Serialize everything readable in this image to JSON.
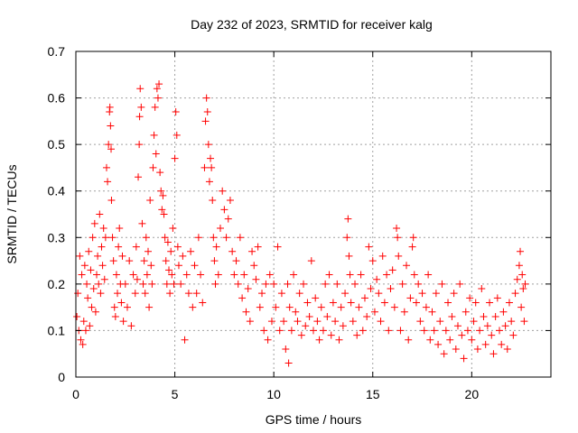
{
  "chart_data": {
    "type": "scatter",
    "title": "Day 232 of 2023, SRMTID for receiver kalg",
    "xlabel": "GPS time / hours",
    "ylabel": "SRMTID / TECUs",
    "xlim": [
      0,
      24
    ],
    "ylim": [
      0,
      0.7
    ],
    "xticks": [
      0,
      5,
      10,
      15,
      20
    ],
    "xtick_labels": [
      "0",
      "5",
      "10",
      "15",
      "20"
    ],
    "yticks": [
      0,
      0.1,
      0.2,
      0.3,
      0.4,
      0.5,
      0.6,
      0.7
    ],
    "ytick_labels": [
      "0",
      "0.1",
      "0.2",
      "0.3",
      "0.4",
      "0.5",
      "0.6",
      "0.7"
    ],
    "grid": true,
    "marker": "+",
    "marker_color": "#ff0000",
    "series": [
      {
        "name": "SRMTID",
        "points": [
          [
            0.05,
            0.13
          ],
          [
            0.1,
            0.18
          ],
          [
            0.15,
            0.1
          ],
          [
            0.2,
            0.26
          ],
          [
            0.25,
            0.08
          ],
          [
            0.3,
            0.22
          ],
          [
            0.35,
            0.07
          ],
          [
            0.4,
            0.12
          ],
          [
            0.45,
            0.24
          ],
          [
            0.5,
            0.1
          ],
          [
            0.55,
            0.2
          ],
          [
            0.6,
            0.17
          ],
          [
            0.65,
            0.27
          ],
          [
            0.7,
            0.11
          ],
          [
            0.75,
            0.23
          ],
          [
            0.8,
            0.15
          ],
          [
            0.85,
            0.3
          ],
          [
            0.9,
            0.19
          ],
          [
            0.95,
            0.33
          ],
          [
            1.0,
            0.14
          ],
          [
            1.05,
            0.22
          ],
          [
            1.1,
            0.26
          ],
          [
            1.15,
            0.2
          ],
          [
            1.2,
            0.35
          ],
          [
            1.25,
            0.18
          ],
          [
            1.3,
            0.28
          ],
          [
            1.35,
            0.24
          ],
          [
            1.4,
            0.32
          ],
          [
            1.45,
            0.21
          ],
          [
            1.5,
            0.3
          ],
          [
            1.55,
            0.45
          ],
          [
            1.6,
            0.42
          ],
          [
            1.65,
            0.5
          ],
          [
            1.7,
            0.57
          ],
          [
            1.72,
            0.58
          ],
          [
            1.75,
            0.54
          ],
          [
            1.78,
            0.49
          ],
          [
            1.8,
            0.38
          ],
          [
            1.85,
            0.3
          ],
          [
            1.9,
            0.25
          ],
          [
            1.95,
            0.15
          ],
          [
            2.0,
            0.13
          ],
          [
            2.05,
            0.22
          ],
          [
            2.1,
            0.18
          ],
          [
            2.15,
            0.28
          ],
          [
            2.2,
            0.32
          ],
          [
            2.25,
            0.2
          ],
          [
            2.3,
            0.16
          ],
          [
            2.35,
            0.26
          ],
          [
            2.4,
            0.12
          ],
          [
            2.5,
            0.2
          ],
          [
            2.6,
            0.15
          ],
          [
            2.7,
            0.25
          ],
          [
            2.8,
            0.11
          ],
          [
            2.9,
            0.22
          ],
          [
            3.0,
            0.18
          ],
          [
            3.05,
            0.28
          ],
          [
            3.1,
            0.21
          ],
          [
            3.15,
            0.43
          ],
          [
            3.2,
            0.5
          ],
          [
            3.22,
            0.56
          ],
          [
            3.25,
            0.62
          ],
          [
            3.3,
            0.58
          ],
          [
            3.35,
            0.33
          ],
          [
            3.4,
            0.2
          ],
          [
            3.45,
            0.25
          ],
          [
            3.5,
            0.18
          ],
          [
            3.55,
            0.3
          ],
          [
            3.6,
            0.22
          ],
          [
            3.65,
            0.27
          ],
          [
            3.7,
            0.15
          ],
          [
            3.75,
            0.38
          ],
          [
            3.8,
            0.24
          ],
          [
            3.85,
            0.2
          ],
          [
            3.9,
            0.45
          ],
          [
            3.95,
            0.52
          ],
          [
            4.0,
            0.58
          ],
          [
            4.05,
            0.48
          ],
          [
            4.1,
            0.62
          ],
          [
            4.15,
            0.6
          ],
          [
            4.2,
            0.63
          ],
          [
            4.25,
            0.44
          ],
          [
            4.3,
            0.4
          ],
          [
            4.35,
            0.36
          ],
          [
            4.4,
            0.39
          ],
          [
            4.45,
            0.35
          ],
          [
            4.5,
            0.3
          ],
          [
            4.55,
            0.25
          ],
          [
            4.6,
            0.2
          ],
          [
            4.65,
            0.29
          ],
          [
            4.7,
            0.23
          ],
          [
            4.75,
            0.18
          ],
          [
            4.8,
            0.27
          ],
          [
            4.85,
            0.22
          ],
          [
            4.9,
            0.32
          ],
          [
            4.95,
            0.2
          ],
          [
            5.0,
            0.47
          ],
          [
            5.05,
            0.57
          ],
          [
            5.1,
            0.52
          ],
          [
            5.15,
            0.28
          ],
          [
            5.2,
            0.24
          ],
          [
            5.3,
            0.2
          ],
          [
            5.4,
            0.26
          ],
          [
            5.5,
            0.08
          ],
          [
            5.6,
            0.22
          ],
          [
            5.7,
            0.18
          ],
          [
            5.8,
            0.27
          ],
          [
            5.9,
            0.15
          ],
          [
            6.0,
            0.24
          ],
          [
            6.1,
            0.18
          ],
          [
            6.2,
            0.3
          ],
          [
            6.3,
            0.22
          ],
          [
            6.4,
            0.16
          ],
          [
            6.5,
            0.45
          ],
          [
            6.55,
            0.55
          ],
          [
            6.6,
            0.6
          ],
          [
            6.65,
            0.57
          ],
          [
            6.7,
            0.5
          ],
          [
            6.75,
            0.42
          ],
          [
            6.8,
            0.47
          ],
          [
            6.85,
            0.45
          ],
          [
            6.9,
            0.38
          ],
          [
            6.95,
            0.3
          ],
          [
            7.0,
            0.25
          ],
          [
            7.05,
            0.2
          ],
          [
            7.1,
            0.28
          ],
          [
            7.2,
            0.22
          ],
          [
            7.3,
            0.32
          ],
          [
            7.4,
            0.4
          ],
          [
            7.5,
            0.36
          ],
          [
            7.6,
            0.3
          ],
          [
            7.7,
            0.34
          ],
          [
            7.8,
            0.38
          ],
          [
            7.9,
            0.27
          ],
          [
            8.0,
            0.22
          ],
          [
            8.1,
            0.25
          ],
          [
            8.2,
            0.2
          ],
          [
            8.3,
            0.3
          ],
          [
            8.4,
            0.17
          ],
          [
            8.5,
            0.22
          ],
          [
            8.6,
            0.14
          ],
          [
            8.7,
            0.19
          ],
          [
            8.8,
            0.12
          ],
          [
            8.9,
            0.27
          ],
          [
            9.0,
            0.24
          ],
          [
            9.1,
            0.21
          ],
          [
            9.2,
            0.28
          ],
          [
            9.3,
            0.15
          ],
          [
            9.4,
            0.18
          ],
          [
            9.5,
            0.1
          ],
          [
            9.6,
            0.2
          ],
          [
            9.7,
            0.08
          ],
          [
            9.8,
            0.22
          ],
          [
            9.9,
            0.12
          ],
          [
            10.0,
            0.2
          ],
          [
            10.1,
            0.15
          ],
          [
            10.2,
            0.28
          ],
          [
            10.3,
            0.1
          ],
          [
            10.4,
            0.18
          ],
          [
            10.5,
            0.12
          ],
          [
            10.6,
            0.06
          ],
          [
            10.7,
            0.2
          ],
          [
            10.75,
            0.03
          ],
          [
            10.8,
            0.15
          ],
          [
            10.9,
            0.1
          ],
          [
            11.0,
            0.22
          ],
          [
            11.1,
            0.14
          ],
          [
            11.2,
            0.12
          ],
          [
            11.3,
            0.18
          ],
          [
            11.4,
            0.09
          ],
          [
            11.5,
            0.2
          ],
          [
            11.6,
            0.11
          ],
          [
            11.7,
            0.16
          ],
          [
            11.8,
            0.13
          ],
          [
            11.9,
            0.25
          ],
          [
            12.0,
            0.1
          ],
          [
            12.1,
            0.17
          ],
          [
            12.2,
            0.12
          ],
          [
            12.3,
            0.08
          ],
          [
            12.4,
            0.15
          ],
          [
            12.5,
            0.1
          ],
          [
            12.6,
            0.2
          ],
          [
            12.7,
            0.13
          ],
          [
            12.8,
            0.22
          ],
          [
            12.9,
            0.09
          ],
          [
            13.0,
            0.16
          ],
          [
            13.1,
            0.12
          ],
          [
            13.2,
            0.2
          ],
          [
            13.3,
            0.08
          ],
          [
            13.4,
            0.15
          ],
          [
            13.5,
            0.11
          ],
          [
            13.6,
            0.18
          ],
          [
            13.7,
            0.3
          ],
          [
            13.75,
            0.34
          ],
          [
            13.8,
            0.26
          ],
          [
            13.85,
            0.22
          ],
          [
            13.9,
            0.16
          ],
          [
            14.0,
            0.12
          ],
          [
            14.1,
            0.2
          ],
          [
            14.2,
            0.09
          ],
          [
            14.3,
            0.15
          ],
          [
            14.4,
            0.22
          ],
          [
            14.5,
            0.1
          ],
          [
            14.6,
            0.17
          ],
          [
            14.7,
            0.13
          ],
          [
            14.8,
            0.28
          ],
          [
            14.9,
            0.19
          ],
          [
            15.0,
            0.25
          ],
          [
            15.1,
            0.14
          ],
          [
            15.2,
            0.21
          ],
          [
            15.3,
            0.18
          ],
          [
            15.4,
            0.12
          ],
          [
            15.5,
            0.26
          ],
          [
            15.6,
            0.16
          ],
          [
            15.7,
            0.22
          ],
          [
            15.8,
            0.1
          ],
          [
            15.9,
            0.19
          ],
          [
            16.0,
            0.23
          ],
          [
            16.1,
            0.15
          ],
          [
            16.2,
            0.32
          ],
          [
            16.25,
            0.3
          ],
          [
            16.3,
            0.26
          ],
          [
            16.4,
            0.1
          ],
          [
            16.5,
            0.2
          ],
          [
            16.6,
            0.14
          ],
          [
            16.7,
            0.24
          ],
          [
            16.8,
            0.08
          ],
          [
            16.9,
            0.17
          ],
          [
            17.0,
            0.28
          ],
          [
            17.05,
            0.3
          ],
          [
            17.1,
            0.22
          ],
          [
            17.2,
            0.16
          ],
          [
            17.3,
            0.2
          ],
          [
            17.4,
            0.12
          ],
          [
            17.5,
            0.18
          ],
          [
            17.6,
            0.1
          ],
          [
            17.7,
            0.15
          ],
          [
            17.8,
            0.22
          ],
          [
            17.9,
            0.08
          ],
          [
            18.0,
            0.14
          ],
          [
            18.1,
            0.1
          ],
          [
            18.2,
            0.18
          ],
          [
            18.3,
            0.07
          ],
          [
            18.4,
            0.12
          ],
          [
            18.5,
            0.2
          ],
          [
            18.6,
            0.05
          ],
          [
            18.7,
            0.1
          ],
          [
            18.8,
            0.16
          ],
          [
            18.9,
            0.08
          ],
          [
            19.0,
            0.13
          ],
          [
            19.1,
            0.18
          ],
          [
            19.2,
            0.06
          ],
          [
            19.3,
            0.11
          ],
          [
            19.4,
            0.2
          ],
          [
            19.5,
            0.09
          ],
          [
            19.6,
            0.04
          ],
          [
            19.7,
            0.14
          ],
          [
            19.8,
            0.1
          ],
          [
            19.9,
            0.17
          ],
          [
            20.0,
            0.08
          ],
          [
            20.1,
            0.12
          ],
          [
            20.2,
            0.16
          ],
          [
            20.3,
            0.06
          ],
          [
            20.4,
            0.1
          ],
          [
            20.5,
            0.19
          ],
          [
            20.6,
            0.13
          ],
          [
            20.7,
            0.07
          ],
          [
            20.8,
            0.11
          ],
          [
            20.9,
            0.16
          ],
          [
            21.0,
            0.09
          ],
          [
            21.1,
            0.05
          ],
          [
            21.2,
            0.13
          ],
          [
            21.3,
            0.17
          ],
          [
            21.4,
            0.1
          ],
          [
            21.5,
            0.07
          ],
          [
            21.6,
            0.14
          ],
          [
            21.7,
            0.11
          ],
          [
            21.8,
            0.06
          ],
          [
            21.9,
            0.16
          ],
          [
            22.0,
            0.12
          ],
          [
            22.1,
            0.09
          ],
          [
            22.2,
            0.18
          ],
          [
            22.3,
            0.21
          ],
          [
            22.4,
            0.24
          ],
          [
            22.45,
            0.27
          ],
          [
            22.5,
            0.15
          ],
          [
            22.55,
            0.22
          ],
          [
            22.6,
            0.19
          ],
          [
            22.65,
            0.12
          ],
          [
            22.7,
            0.2
          ]
        ]
      }
    ]
  }
}
